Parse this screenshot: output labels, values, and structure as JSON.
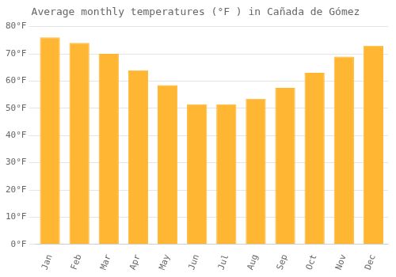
{
  "chart_data": {
    "type": "bar",
    "title": "Average monthly temperatures (°F ) in Cañada de Gómez",
    "categories": [
      "Jan",
      "Feb",
      "Mar",
      "Apr",
      "May",
      "Jun",
      "Jul",
      "Aug",
      "Sep",
      "Oct",
      "Nov",
      "Dec"
    ],
    "values": [
      76,
      74,
      70,
      64,
      58.5,
      51.5,
      51.5,
      53.5,
      57.5,
      63,
      69,
      73
    ],
    "color": "#FFB733",
    "ylim": [
      0,
      80
    ],
    "yticks": [
      {
        "value": 0,
        "label": "0°F"
      },
      {
        "value": 10,
        "label": "10°F"
      },
      {
        "value": 20,
        "label": "20°F"
      },
      {
        "value": 30,
        "label": "30°F"
      },
      {
        "value": 40,
        "label": "40°F"
      },
      {
        "value": 50,
        "label": "50°F"
      },
      {
        "value": 60,
        "label": "60°F"
      },
      {
        "value": 70,
        "label": "70°F"
      },
      {
        "value": 80,
        "label": "80°F"
      }
    ],
    "grid": true
  }
}
